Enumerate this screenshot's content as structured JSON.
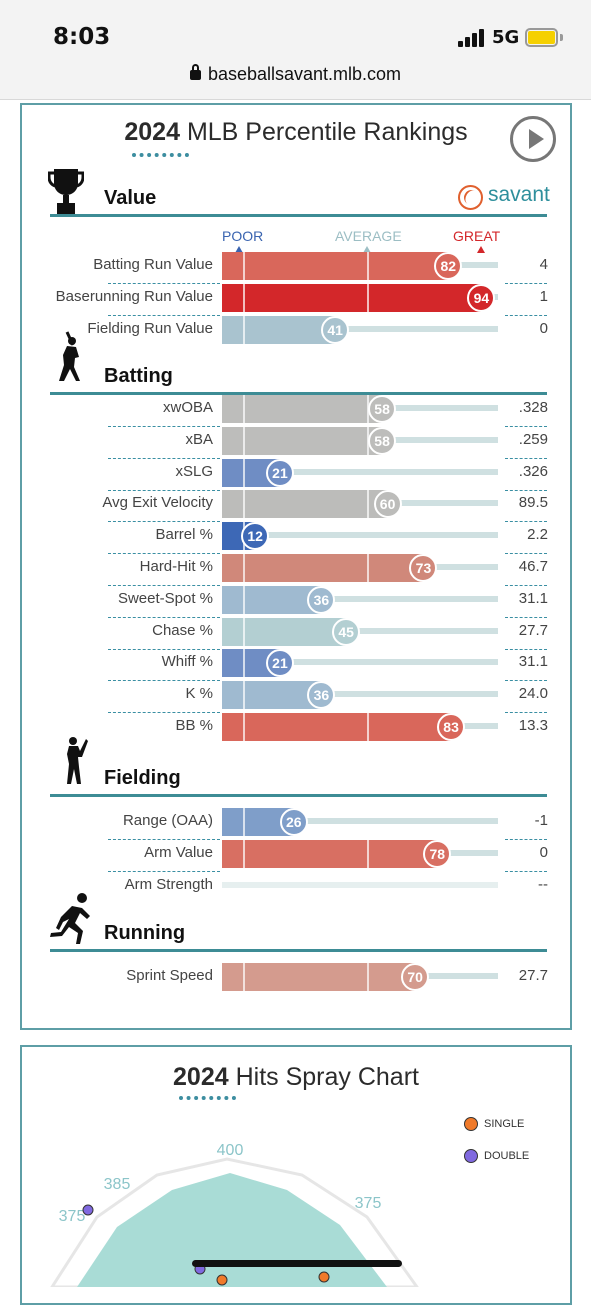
{
  "status_bar": {
    "time": "8:03",
    "network": "5G"
  },
  "browser": {
    "url": "baseballsavant.mlb.com"
  },
  "percentile_card": {
    "title_year": "2024",
    "title_rest": "MLB Percentile Rankings",
    "brand": "savant",
    "scale": {
      "poor": "POOR",
      "average": "AVERAGE",
      "great": "GREAT"
    },
    "colors": {
      "accent": "#3d8c95",
      "great": "#d3272a",
      "poor": "#3a64b0"
    },
    "sections": [
      {
        "label": "Value",
        "icon": "trophy-icon",
        "rows": [
          {
            "name": "Batting Run Value",
            "percentile": 82,
            "value": "4"
          },
          {
            "name": "Baserunning Run Value",
            "percentile": 94,
            "value": "1"
          },
          {
            "name": "Fielding Run Value",
            "percentile": 41,
            "value": "0"
          }
        ]
      },
      {
        "label": "Batting",
        "icon": "batter-icon",
        "rows": [
          {
            "name": "xwOBA",
            "percentile": 58,
            "value": ".328"
          },
          {
            "name": "xBA",
            "percentile": 58,
            "value": ".259"
          },
          {
            "name": "xSLG",
            "percentile": 21,
            "value": ".326"
          },
          {
            "name": "Avg Exit Velocity",
            "percentile": 60,
            "value": "89.5"
          },
          {
            "name": "Barrel %",
            "percentile": 12,
            "value": "2.2"
          },
          {
            "name": "Hard-Hit %",
            "percentile": 73,
            "value": "46.7"
          },
          {
            "name": "Sweet-Spot %",
            "percentile": 36,
            "value": "31.1"
          },
          {
            "name": "Chase %",
            "percentile": 45,
            "value": "27.7"
          },
          {
            "name": "Whiff %",
            "percentile": 21,
            "value": "31.1"
          },
          {
            "name": "K %",
            "percentile": 36,
            "value": "24.0"
          },
          {
            "name": "BB %",
            "percentile": 83,
            "value": "13.3"
          }
        ]
      },
      {
        "label": "Fielding",
        "icon": "fielder-icon",
        "rows": [
          {
            "name": "Range (OAA)",
            "percentile": 26,
            "value": "-1"
          },
          {
            "name": "Arm Value",
            "percentile": 78,
            "value": "0"
          },
          {
            "name": "Arm Strength",
            "percentile": null,
            "value": "--"
          }
        ]
      },
      {
        "label": "Running",
        "icon": "runner-icon",
        "rows": [
          {
            "name": "Sprint Speed",
            "percentile": 70,
            "value": "27.7"
          }
        ]
      }
    ]
  },
  "spray_card": {
    "title_year": "2024",
    "title_rest": "Hits Spray Chart",
    "legend": [
      {
        "label": "SINGLE",
        "color": "#f07a2a"
      },
      {
        "label": "DOUBLE",
        "color": "#8069e0"
      }
    ],
    "distances": {
      "left": "375",
      "left_center": "385",
      "center": "400",
      "right_center": "375"
    }
  }
}
